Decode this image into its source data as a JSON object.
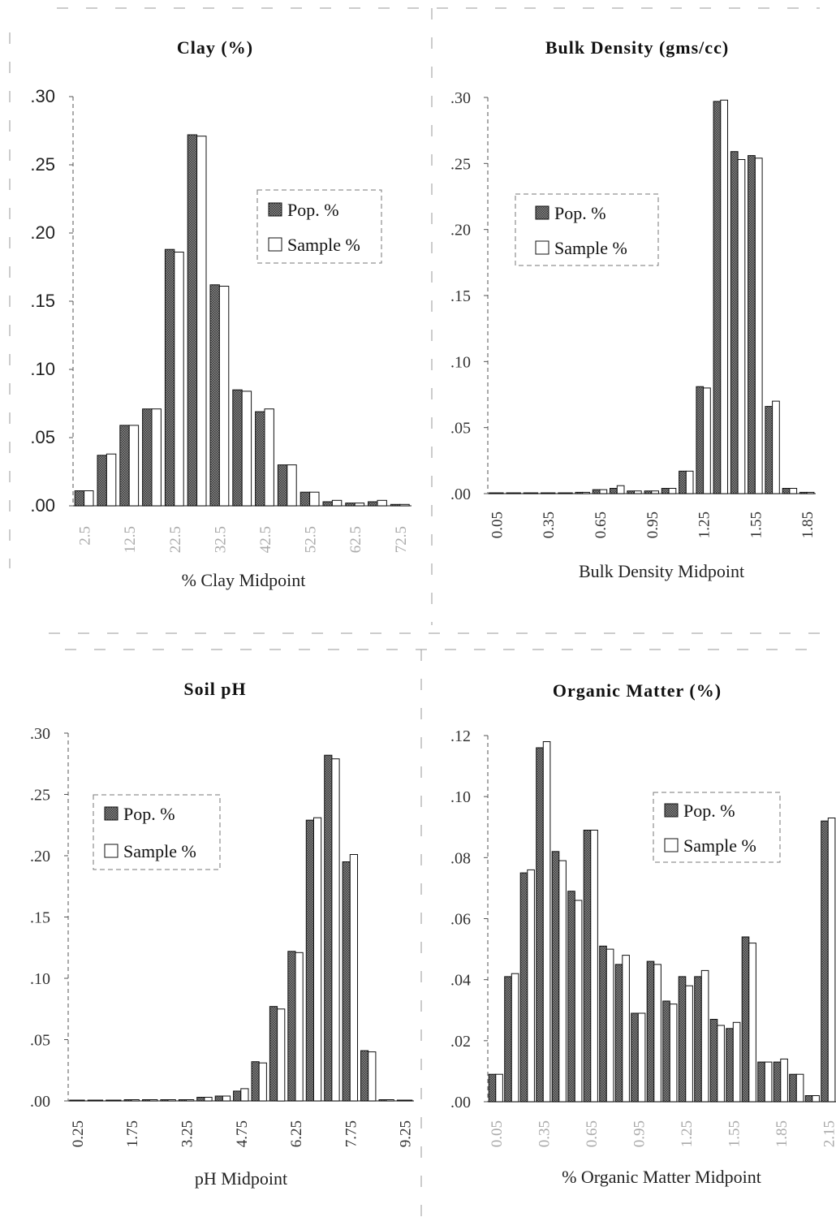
{
  "legend": {
    "pop_label": "Pop. %",
    "sample_label": "Sample %"
  },
  "chart_data": [
    {
      "id": "clay",
      "type": "bar",
      "title": "Clay (%)",
      "xlabel": "% Clay Midpoint",
      "ylabel": "",
      "ylim": [
        0,
        0.3
      ],
      "yticks": [
        ".00",
        ".05",
        ".10",
        ".15",
        ".20",
        ".25",
        ".30"
      ],
      "xtick_labels": [
        "2.5",
        "12.5",
        "22.5",
        "32.5",
        "42.5",
        "52.5",
        "62.5",
        "72.5"
      ],
      "legend_position": "top-right",
      "categories": [
        "2.5",
        "7.5",
        "12.5",
        "17.5",
        "22.5",
        "27.5",
        "32.5",
        "37.5",
        "42.5",
        "47.5",
        "52.5",
        "57.5",
        "62.5",
        "67.5",
        "72.5"
      ],
      "series": [
        {
          "name": "Pop. %",
          "values": [
            0.011,
            0.037,
            0.059,
            0.071,
            0.188,
            0.272,
            0.162,
            0.085,
            0.069,
            0.03,
            0.01,
            0.003,
            0.002,
            0.003,
            0.001
          ]
        },
        {
          "name": "Sample %",
          "values": [
            0.011,
            0.038,
            0.059,
            0.071,
            0.186,
            0.271,
            0.161,
            0.084,
            0.071,
            0.03,
            0.01,
            0.004,
            0.002,
            0.004,
            0.001
          ]
        }
      ]
    },
    {
      "id": "bulk-density",
      "type": "bar",
      "title": "Bulk Density (gms/cc)",
      "xlabel": "Bulk Density Midpoint",
      "ylabel": "",
      "ylim": [
        0,
        0.3
      ],
      "yticks": [
        ".00",
        ".05",
        ".10",
        ".15",
        ".20",
        ".25",
        ".30"
      ],
      "xtick_labels": [
        "0.05",
        "0.35",
        "0.65",
        "0.95",
        "1.25",
        "1.55",
        "1.85"
      ],
      "legend_position": "top-left",
      "categories": [
        "0.05",
        "0.15",
        "0.25",
        "0.35",
        "0.45",
        "0.55",
        "0.65",
        "0.75",
        "0.85",
        "0.95",
        "1.05",
        "1.15",
        "1.25",
        "1.35",
        "1.45",
        "1.55",
        "1.65",
        "1.75",
        "1.85"
      ],
      "series": [
        {
          "name": "Pop. %",
          "values": [
            0.0005,
            0.0005,
            0.0005,
            0.0005,
            0.0005,
            0.001,
            0.003,
            0.004,
            0.002,
            0.002,
            0.004,
            0.017,
            0.081,
            0.297,
            0.259,
            0.256,
            0.066,
            0.004,
            0.001
          ]
        },
        {
          "name": "Sample %",
          "values": [
            0.0005,
            0.0005,
            0.0005,
            0.0005,
            0.0005,
            0.001,
            0.003,
            0.006,
            0.002,
            0.002,
            0.004,
            0.017,
            0.08,
            0.298,
            0.253,
            0.254,
            0.07,
            0.004,
            0.001
          ]
        }
      ]
    },
    {
      "id": "soil-ph",
      "type": "bar",
      "title": "Soil pH",
      "xlabel": "pH Midpoint",
      "ylabel": "",
      "ylim": [
        0,
        0.3
      ],
      "yticks": [
        ".00",
        ".05",
        ".10",
        ".15",
        ".20",
        ".25",
        ".30"
      ],
      "xtick_labels": [
        "0.25",
        "1.75",
        "3.25",
        "4.75",
        "6.25",
        "7.75",
        "9.25"
      ],
      "legend_position": "top-left",
      "categories": [
        "0.25",
        "0.75",
        "1.25",
        "1.75",
        "2.25",
        "2.75",
        "3.25",
        "3.75",
        "4.25",
        "4.75",
        "5.25",
        "5.75",
        "6.25",
        "6.75",
        "7.25",
        "7.75",
        "8.25",
        "8.75",
        "9.25"
      ],
      "series": [
        {
          "name": "Pop. %",
          "values": [
            0,
            0,
            0,
            0.001,
            0.001,
            0.001,
            0.001,
            0.003,
            0.004,
            0.008,
            0.032,
            0.077,
            0.122,
            0.229,
            0.282,
            0.195,
            0.041,
            0.001,
            0
          ]
        },
        {
          "name": "Sample %",
          "values": [
            0,
            0,
            0,
            0.001,
            0.001,
            0.001,
            0.001,
            0.003,
            0.004,
            0.01,
            0.031,
            0.075,
            0.121,
            0.231,
            0.279,
            0.201,
            0.04,
            0.001,
            0
          ]
        }
      ]
    },
    {
      "id": "organic-matter",
      "type": "bar",
      "title": "Organic Matter (%)",
      "xlabel": "% Organic Matter Midpoint",
      "ylabel": "",
      "ylim": [
        0,
        0.12
      ],
      "yticks": [
        ".00",
        ".02",
        ".04",
        ".06",
        ".08",
        ".10",
        ".12"
      ],
      "xtick_labels": [
        "0.05",
        "0.35",
        "0.65",
        "0.95",
        "1.25",
        "1.55",
        "1.85",
        "2.15"
      ],
      "legend_position": "top-right",
      "categories": [
        "0.05",
        "0.15",
        "0.25",
        "0.35",
        "0.45",
        "0.55",
        "0.65",
        "0.75",
        "0.85",
        "0.95",
        "1.05",
        "1.15",
        "1.25",
        "1.35",
        "1.45",
        "1.55",
        "1.65",
        "1.75",
        "1.85",
        "1.95",
        "2.05",
        "2.15"
      ],
      "series": [
        {
          "name": "Pop. %",
          "values": [
            0.009,
            0.041,
            0.075,
            0.116,
            0.082,
            0.069,
            0.089,
            0.051,
            0.045,
            0.029,
            0.046,
            0.033,
            0.041,
            0.041,
            0.027,
            0.024,
            0.054,
            0.013,
            0.013,
            0.009,
            0.002,
            0.092
          ]
        },
        {
          "name": "Sample %",
          "values": [
            0.009,
            0.042,
            0.076,
            0.118,
            0.079,
            0.066,
            0.089,
            0.05,
            0.048,
            0.029,
            0.045,
            0.032,
            0.038,
            0.043,
            0.025,
            0.026,
            0.052,
            0.013,
            0.014,
            0.009,
            0.002,
            0.093
          ]
        }
      ]
    }
  ]
}
